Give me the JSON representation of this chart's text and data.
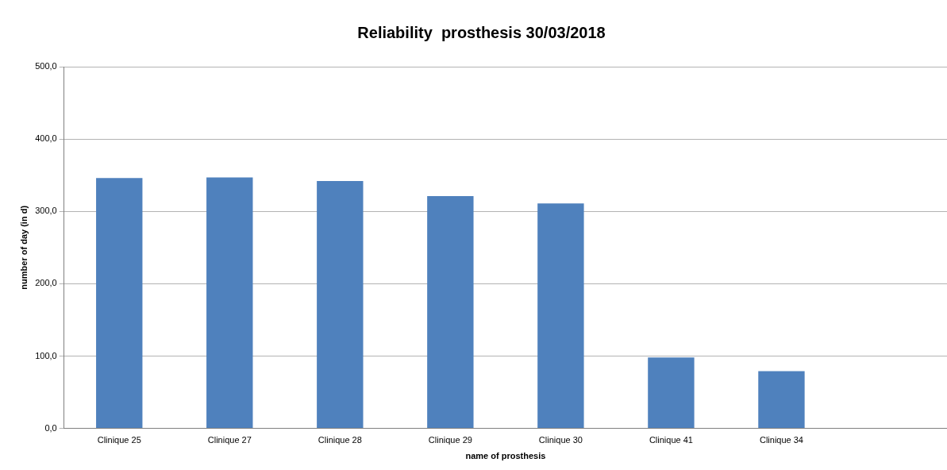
{
  "chart_data": {
    "type": "bar",
    "title": "Reliability  prosthesis 30/03/2018",
    "xlabel": "name of prosthesis",
    "ylabel": "number of day (in d)",
    "categories": [
      "Clinique 25",
      "Clinique 27",
      "Clinique 28",
      "Clinique 29",
      "Clinique 30",
      "Clinique 41",
      "Clinique 34",
      null
    ],
    "values": [
      346,
      347,
      342,
      321,
      311,
      98,
      79,
      null
    ],
    "color": "#4f81bd",
    "ylim": [
      0,
      500
    ],
    "yticks": [
      {
        "value": 0,
        "label": "0,0"
      },
      {
        "value": 100,
        "label": "100,0"
      },
      {
        "value": 200,
        "label": "200,0"
      },
      {
        "value": 300,
        "label": "300,0"
      },
      {
        "value": 400,
        "label": "400,0"
      },
      {
        "value": 500,
        "label": "500,0"
      }
    ],
    "grid": "y",
    "legend": false
  }
}
